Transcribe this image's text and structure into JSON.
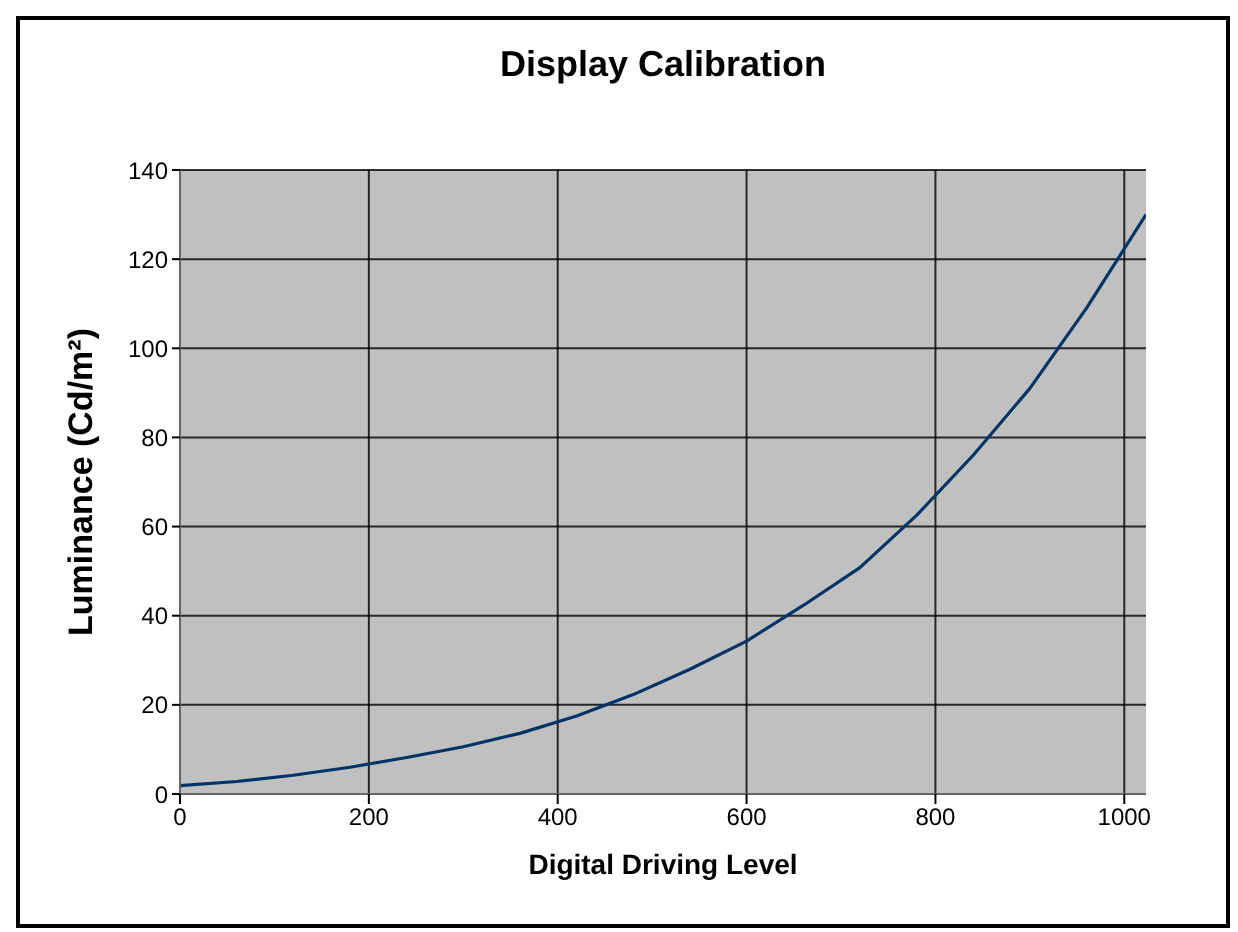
{
  "chart_data": {
    "type": "line",
    "title": "Display Calibration",
    "xlabel": "Digital Driving Level",
    "ylabel": "Luminance (Cd/m²)",
    "x": [
      0,
      60,
      120,
      180,
      240,
      300,
      360,
      420,
      480,
      540,
      600,
      660,
      720,
      780,
      840,
      900,
      960,
      1023
    ],
    "series": [
      {
        "color": "#003366",
        "values": [
          1.9,
          2.8,
          4.2,
          6.0,
          8.2,
          10.6,
          13.6,
          17.5,
          22.3,
          28,
          34.3,
          42.3,
          50.8,
          62.5,
          76,
          91,
          109,
          130
        ]
      }
    ],
    "xlim": [
      0,
      1023
    ],
    "xticks": [
      0,
      200,
      400,
      600,
      800,
      1000
    ],
    "ylim": [
      0,
      140
    ],
    "yticks": [
      0,
      20,
      40,
      60,
      80,
      100,
      120,
      140
    ],
    "grid": true,
    "marker": "none",
    "line_style": "solid"
  }
}
